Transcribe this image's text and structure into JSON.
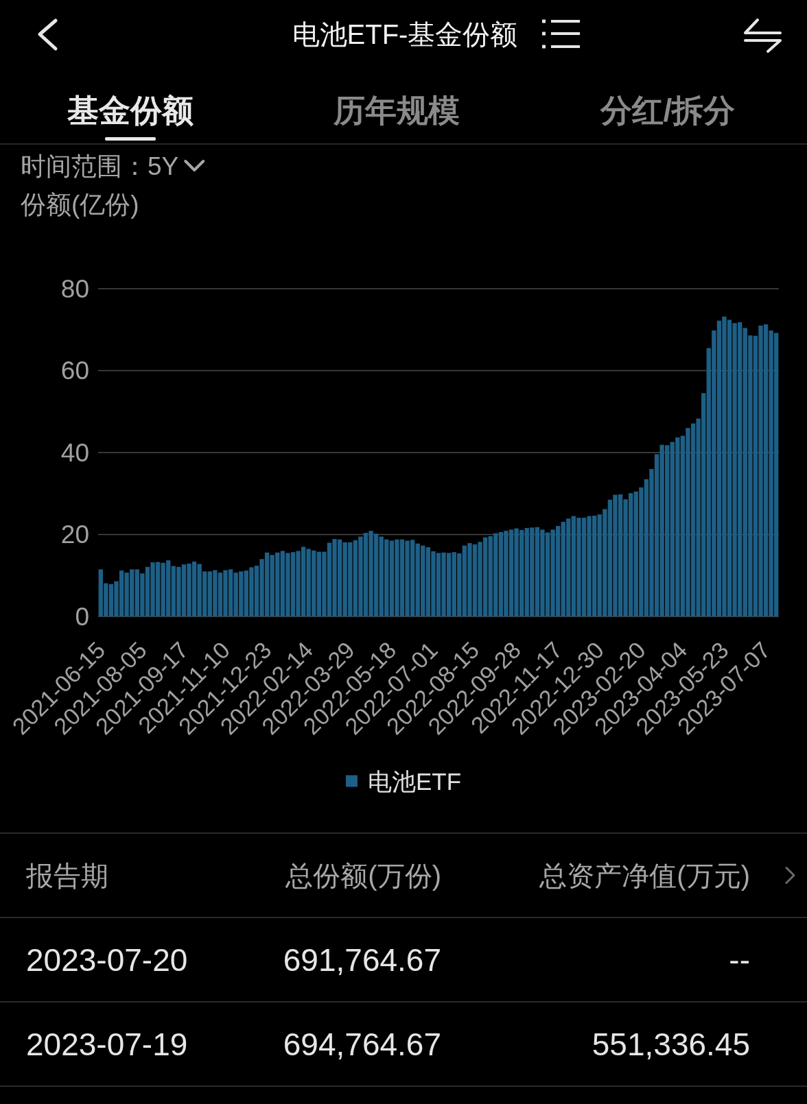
{
  "chart_data": [
    {
      "type": "bar",
      "title": "电池ETF-基金份额",
      "annotations": [
        "基金份额",
        "历年规模",
        "分红/拆分",
        "时间范围：5Y"
      ],
      "ylabel": "份额(亿份)",
      "categories": [
        "2021-06-15",
        null,
        null,
        null,
        null,
        null,
        null,
        null,
        "2021-08-05",
        null,
        null,
        null,
        null,
        null,
        null,
        null,
        "2021-09-17",
        null,
        null,
        null,
        null,
        null,
        null,
        null,
        "2021-11-10",
        null,
        null,
        null,
        null,
        null,
        null,
        null,
        "2021-12-23",
        null,
        null,
        null,
        null,
        null,
        null,
        null,
        "2022-02-14",
        null,
        null,
        null,
        null,
        null,
        null,
        null,
        "2022-03-29",
        null,
        null,
        null,
        null,
        null,
        null,
        null,
        "2022-05-18",
        null,
        null,
        null,
        null,
        null,
        null,
        null,
        "2022-07-01",
        null,
        null,
        null,
        null,
        null,
        null,
        null,
        "2022-08-15",
        null,
        null,
        null,
        null,
        null,
        null,
        null,
        "2022-09-28",
        null,
        null,
        null,
        null,
        null,
        null,
        null,
        "2022-11-17",
        null,
        null,
        null,
        null,
        null,
        null,
        null,
        "2022-12-30",
        null,
        null,
        null,
        null,
        null,
        null,
        null,
        "2023-02-20",
        null,
        null,
        null,
        null,
        null,
        null,
        null,
        "2023-04-04",
        null,
        null,
        null,
        null,
        null,
        null,
        null,
        "2023-05-23",
        null,
        null,
        null,
        null,
        null,
        null,
        null,
        "2023-07-07",
        null,
        null
      ],
      "series": [
        {
          "name": "电池ETF",
          "color": "#1e5f86",
          "values": [
            11.5,
            8.1,
            7.9,
            8.6,
            11.2,
            10.7,
            11.5,
            11.5,
            10.5,
            12.1,
            13.2,
            13.3,
            13.1,
            13.7,
            12.3,
            12.1,
            12.7,
            12.9,
            13.4,
            12.8,
            11.0,
            11.0,
            11.3,
            10.7,
            11.3,
            11.5,
            10.7,
            11.0,
            11.2,
            12.0,
            12.4,
            14.0,
            15.6,
            15.0,
            15.6,
            16.0,
            15.5,
            15.7,
            16.0,
            17.0,
            16.5,
            16.1,
            15.8,
            15.8,
            18.0,
            18.9,
            18.8,
            18.1,
            18.1,
            18.6,
            19.5,
            20.4,
            20.9,
            20.2,
            19.5,
            18.8,
            18.5,
            18.8,
            18.8,
            18.5,
            18.7,
            17.8,
            17.3,
            16.9,
            15.9,
            15.5,
            15.6,
            15.5,
            15.7,
            15.4,
            17.3,
            17.9,
            17.6,
            18.2,
            19.3,
            19.6,
            20.3,
            20.6,
            20.9,
            21.2,
            21.5,
            21.1,
            21.6,
            21.7,
            21.8,
            21.2,
            20.5,
            21.2,
            22.1,
            23.1,
            23.9,
            24.5,
            24.1,
            24.1,
            24.5,
            24.6,
            24.9,
            26.2,
            28.5,
            29.7,
            29.8,
            28.6,
            30.1,
            30.5,
            31.5,
            33.5,
            36.0,
            39.6,
            41.9,
            41.8,
            42.6,
            43.7,
            44.1,
            46.0,
            47.1,
            48.3,
            54.5,
            65.5,
            69.8,
            72.2,
            73.2,
            72.4,
            71.6,
            71.8,
            70.4,
            68.6,
            68.5,
            71.0,
            71.3,
            69.8,
            69.2
          ]
        }
      ],
      "ylim": [
        0,
        80
      ],
      "yticks": [
        0,
        20,
        40,
        60,
        80
      ],
      "grid": "y",
      "legend": "bottom"
    },
    {
      "type": "other",
      "annotations": [
        "报告期",
        "总份额(万份)",
        "总资产净值(万元)",
        "2023-07-20",
        "691,764.67",
        "--",
        "2023-07-19",
        "694,764.67",
        "551,336.45"
      ]
    }
  ]
}
